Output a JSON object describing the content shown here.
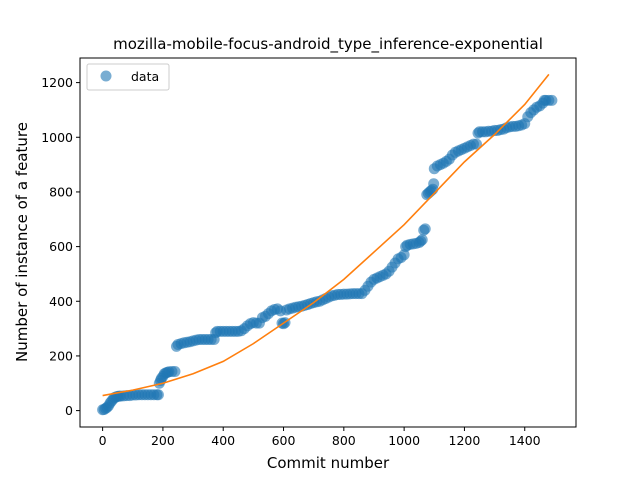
{
  "chart_data": {
    "type": "scatter",
    "title": "mozilla-mobile-focus-android_type_inference-exponential",
    "xlabel": "Commit number",
    "ylabel": "Number of instance of a feature",
    "xlim": [
      -75,
      1570
    ],
    "ylim": [
      -60,
      1290
    ],
    "xticks": [
      0,
      200,
      400,
      600,
      800,
      1000,
      1200,
      1400
    ],
    "yticks": [
      0,
      200,
      400,
      600,
      800,
      1000,
      1200
    ],
    "legend": {
      "position": "top-left",
      "entries": [
        "data"
      ]
    },
    "grid": false,
    "series": [
      {
        "name": "data",
        "kind": "scatter",
        "color": "#1f77b4",
        "points": [
          [
            0,
            3
          ],
          [
            5,
            4
          ],
          [
            10,
            8
          ],
          [
            15,
            12
          ],
          [
            20,
            18
          ],
          [
            25,
            28
          ],
          [
            30,
            35
          ],
          [
            35,
            42
          ],
          [
            40,
            48
          ],
          [
            45,
            50
          ],
          [
            50,
            52
          ],
          [
            55,
            53
          ],
          [
            60,
            53
          ],
          [
            70,
            54
          ],
          [
            80,
            55
          ],
          [
            90,
            55
          ],
          [
            100,
            57
          ],
          [
            110,
            57
          ],
          [
            120,
            58
          ],
          [
            130,
            58
          ],
          [
            140,
            58
          ],
          [
            150,
            58
          ],
          [
            160,
            58
          ],
          [
            170,
            58
          ],
          [
            180,
            58
          ],
          [
            185,
            58
          ],
          [
            188,
            100
          ],
          [
            192,
            110
          ],
          [
            195,
            118
          ],
          [
            200,
            125
          ],
          [
            205,
            135
          ],
          [
            210,
            138
          ],
          [
            215,
            140
          ],
          [
            220,
            142
          ],
          [
            230,
            143
          ],
          [
            240,
            143
          ],
          [
            245,
            235
          ],
          [
            250,
            242
          ],
          [
            260,
            245
          ],
          [
            270,
            248
          ],
          [
            280,
            250
          ],
          [
            290,
            252
          ],
          [
            300,
            255
          ],
          [
            310,
            258
          ],
          [
            320,
            260
          ],
          [
            330,
            260
          ],
          [
            340,
            260
          ],
          [
            350,
            260
          ],
          [
            360,
            260
          ],
          [
            370,
            260
          ],
          [
            375,
            285
          ],
          [
            380,
            290
          ],
          [
            390,
            290
          ],
          [
            400,
            290
          ],
          [
            410,
            290
          ],
          [
            420,
            290
          ],
          [
            430,
            290
          ],
          [
            440,
            290
          ],
          [
            450,
            290
          ],
          [
            460,
            292
          ],
          [
            470,
            300
          ],
          [
            480,
            310
          ],
          [
            490,
            318
          ],
          [
            500,
            322
          ],
          [
            510,
            320
          ],
          [
            520,
            320
          ],
          [
            530,
            340
          ],
          [
            540,
            345
          ],
          [
            550,
            355
          ],
          [
            560,
            365
          ],
          [
            570,
            370
          ],
          [
            580,
            372
          ],
          [
            590,
            365
          ],
          [
            595,
            320
          ],
          [
            600,
            318
          ],
          [
            605,
            322
          ],
          [
            610,
            368
          ],
          [
            620,
            372
          ],
          [
            630,
            375
          ],
          [
            640,
            378
          ],
          [
            650,
            380
          ],
          [
            660,
            382
          ],
          [
            670,
            385
          ],
          [
            680,
            388
          ],
          [
            690,
            392
          ],
          [
            700,
            395
          ],
          [
            710,
            398
          ],
          [
            720,
            400
          ],
          [
            730,
            405
          ],
          [
            740,
            410
          ],
          [
            750,
            415
          ],
          [
            760,
            420
          ],
          [
            770,
            422
          ],
          [
            780,
            425
          ],
          [
            790,
            425
          ],
          [
            800,
            426
          ],
          [
            810,
            426
          ],
          [
            820,
            427
          ],
          [
            830,
            428
          ],
          [
            840,
            428
          ],
          [
            850,
            428
          ],
          [
            860,
            428
          ],
          [
            870,
            440
          ],
          [
            880,
            455
          ],
          [
            890,
            470
          ],
          [
            900,
            480
          ],
          [
            910,
            485
          ],
          [
            920,
            490
          ],
          [
            930,
            495
          ],
          [
            940,
            500
          ],
          [
            950,
            510
          ],
          [
            960,
            525
          ],
          [
            970,
            540
          ],
          [
            980,
            555
          ],
          [
            990,
            560
          ],
          [
            1000,
            570
          ],
          [
            1005,
            600
          ],
          [
            1010,
            605
          ],
          [
            1020,
            608
          ],
          [
            1030,
            610
          ],
          [
            1040,
            612
          ],
          [
            1050,
            615
          ],
          [
            1055,
            620
          ],
          [
            1060,
            625
          ],
          [
            1065,
            660
          ],
          [
            1070,
            665
          ],
          [
            1075,
            790
          ],
          [
            1080,
            795
          ],
          [
            1085,
            800
          ],
          [
            1090,
            805
          ],
          [
            1095,
            810
          ],
          [
            1098,
            830
          ],
          [
            1100,
            885
          ],
          [
            1110,
            895
          ],
          [
            1120,
            900
          ],
          [
            1130,
            905
          ],
          [
            1140,
            912
          ],
          [
            1150,
            920
          ],
          [
            1160,
            935
          ],
          [
            1170,
            945
          ],
          [
            1180,
            950
          ],
          [
            1190,
            955
          ],
          [
            1200,
            960
          ],
          [
            1210,
            965
          ],
          [
            1220,
            970
          ],
          [
            1230,
            975
          ],
          [
            1240,
            975
          ],
          [
            1245,
            1015
          ],
          [
            1250,
            1020
          ],
          [
            1260,
            1020
          ],
          [
            1270,
            1020
          ],
          [
            1280,
            1022
          ],
          [
            1290,
            1022
          ],
          [
            1300,
            1025
          ],
          [
            1310,
            1025
          ],
          [
            1320,
            1028
          ],
          [
            1330,
            1030
          ],
          [
            1340,
            1035
          ],
          [
            1350,
            1038
          ],
          [
            1360,
            1040
          ],
          [
            1370,
            1040
          ],
          [
            1380,
            1042
          ],
          [
            1390,
            1045
          ],
          [
            1400,
            1050
          ],
          [
            1410,
            1075
          ],
          [
            1420,
            1090
          ],
          [
            1430,
            1100
          ],
          [
            1440,
            1110
          ],
          [
            1450,
            1115
          ],
          [
            1460,
            1125
          ],
          [
            1465,
            1135
          ],
          [
            1470,
            1135
          ],
          [
            1480,
            1135
          ],
          [
            1490,
            1135
          ]
        ]
      },
      {
        "kind": "line",
        "color": "#ff7f0e",
        "points": [
          [
            0,
            55
          ],
          [
            100,
            75
          ],
          [
            200,
            100
          ],
          [
            300,
            135
          ],
          [
            400,
            180
          ],
          [
            500,
            245
          ],
          [
            600,
            320
          ],
          [
            700,
            395
          ],
          [
            800,
            480
          ],
          [
            900,
            580
          ],
          [
            1000,
            680
          ],
          [
            1100,
            795
          ],
          [
            1200,
            910
          ],
          [
            1300,
            1010
          ],
          [
            1400,
            1120
          ],
          [
            1480,
            1230
          ]
        ]
      }
    ]
  }
}
